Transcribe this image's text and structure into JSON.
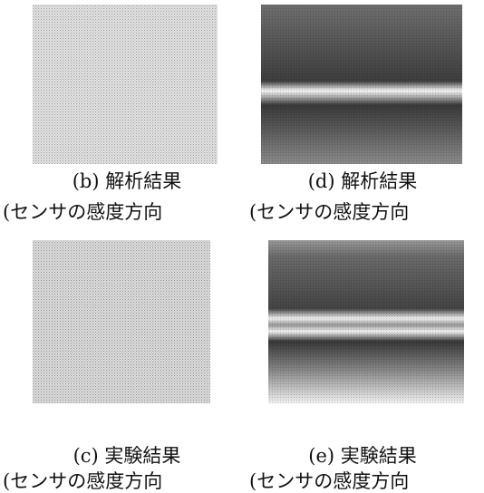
{
  "panels": [
    {
      "label": "(b) 解析結果",
      "caption": "(センサの感度方向"
    },
    {
      "label": "(d) 解析結果",
      "caption": "(センサの感度方向"
    },
    {
      "label": "(c) 実験結果",
      "caption": "(センサの感度方向"
    },
    {
      "label": "(e) 実験結果",
      "caption": "(センサの感度方向"
    }
  ]
}
